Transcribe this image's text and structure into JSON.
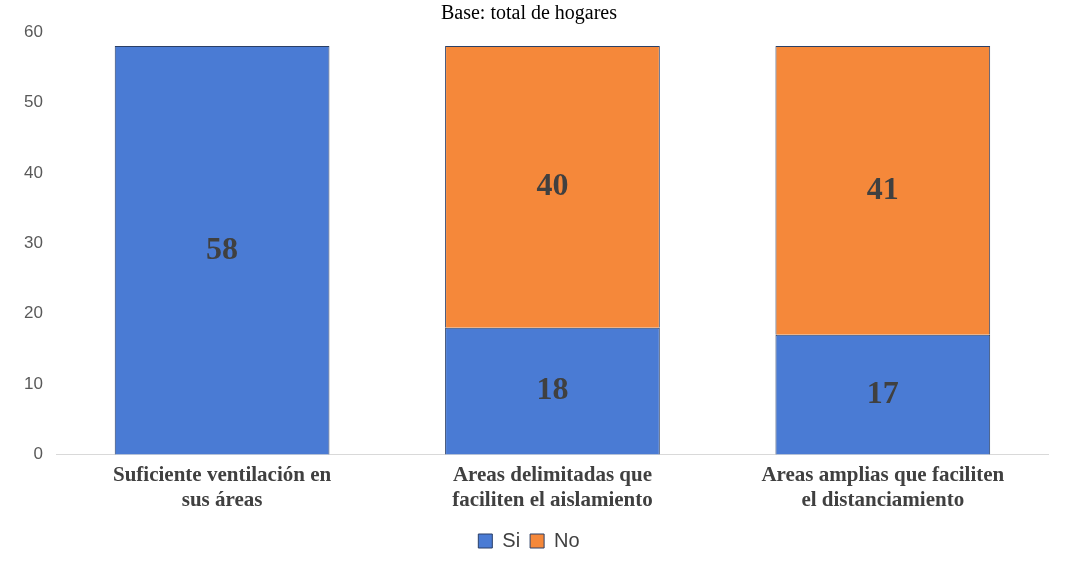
{
  "chart_data": {
    "type": "bar",
    "title": "Base: total de hogares",
    "stacked": true,
    "categories": [
      "Suficiente ventilación en sus áreas",
      "Areas delimitadas que faciliten el aislamiento",
      "Areas amplias que faciliten el distanciamiento"
    ],
    "series": [
      {
        "name": "Si",
        "color": "#4a7bd4",
        "values": [
          58,
          18,
          17
        ]
      },
      {
        "name": "No",
        "color": "#f5883a",
        "values": [
          null,
          40,
          41
        ]
      }
    ],
    "ylim": [
      0,
      60
    ],
    "yticks": [
      0,
      10,
      20,
      30,
      40,
      50,
      60
    ],
    "grid": false,
    "legend": "bottom",
    "data_labels": true
  }
}
